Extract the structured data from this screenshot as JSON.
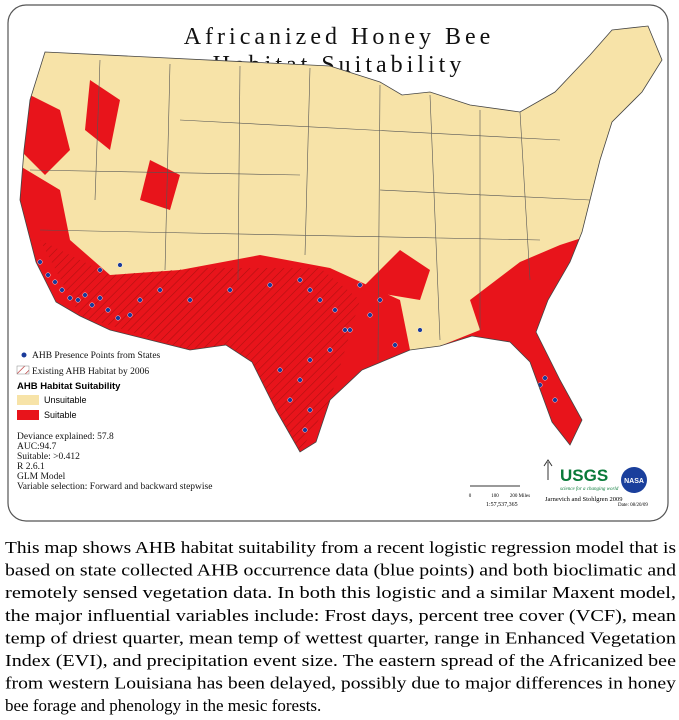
{
  "title": {
    "line1": "Africanized Honey Bee",
    "line2": "Habitat Suitability"
  },
  "legend": {
    "presence": "AHB Presence Points from States",
    "existing": "Existing AHB Habitat by 2006",
    "heading": "AHB Habitat Suitability",
    "unsuitable": "Unsuitable",
    "suitable": "Suitable"
  },
  "model_stats": [
    "Deviance explained: 57.8",
    "AUC:94.7",
    "Suitable: >0.412",
    "R 2.6.1",
    "GLM Model",
    "Variable selection: Forward and backward stepwise"
  ],
  "scale_bar": {
    "ticks": [
      "0",
      "100",
      "200 Miles"
    ],
    "ratio": "1:57,537,365"
  },
  "credits": {
    "usgs": "USGS",
    "usgs_tagline": "science for a changing world",
    "nasa": "NASA",
    "authors": "Jarnevich and Stohlgren 2009",
    "date": "Date: 08/20/09"
  },
  "caption": [
    "This map shows AHB habitat suitability from a recent logistic regression model that is",
    "based on state collected AHB occurrence data (blue points) and both bioclimatic and",
    "remotely sensed vegetation data.  In both this logistic and a similar Maxent model,",
    "the major influential variables include: Frost days, percent tree cover (VCF), mean",
    "temp of driest quarter, mean temp of wettest quarter, range in Enhanced Vegetation",
    "Index (EVI), and precipitation event size.  The eastern spread of the Africanized bee",
    "from western Louisiana has been delayed, possibly due to major differences in honey",
    "bee forage and phenology in the mesic forests."
  ]
}
